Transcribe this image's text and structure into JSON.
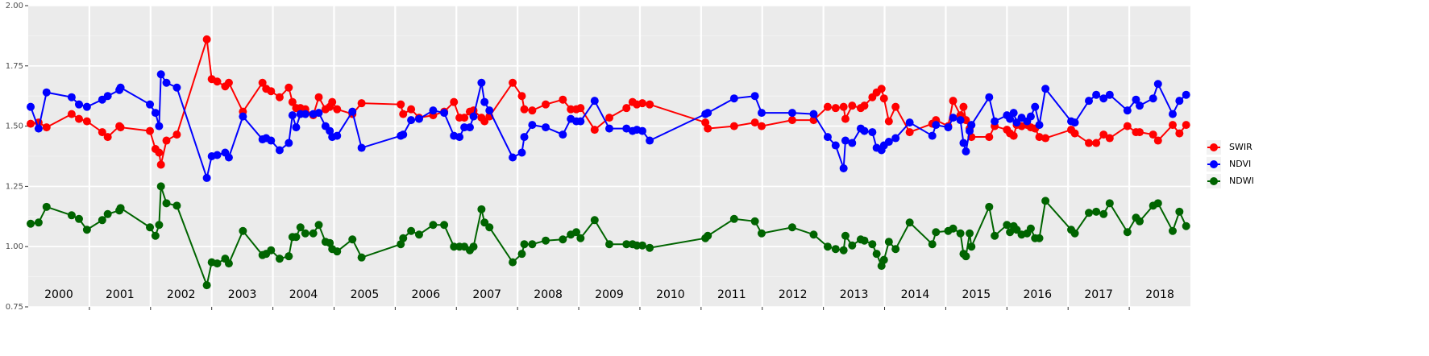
{
  "chart_data": {
    "type": "line",
    "x": [
      2000.04,
      2000.17,
      2000.3,
      2000.71,
      2000.83,
      2000.96,
      2001.21,
      2001.3,
      2001.49,
      2001.51,
      2001.99,
      2002.08,
      2002.14,
      2002.17,
      2002.26,
      2002.43,
      2002.92,
      2003.0,
      2003.09,
      2003.22,
      2003.28,
      2003.51,
      2003.83,
      2003.89,
      2003.97,
      2004.11,
      2004.26,
      2004.32,
      2004.38,
      2004.45,
      2004.53,
      2004.66,
      2004.75,
      2004.86,
      2004.93,
      2004.97,
      2005.05,
      2005.3,
      2005.45,
      2006.09,
      2006.13,
      2006.26,
      2006.39,
      2006.62,
      2006.8,
      2006.96,
      2007.05,
      2007.13,
      2007.22,
      2007.28,
      2007.41,
      2007.46,
      2007.54,
      2007.92,
      2008.07,
      2008.11,
      2008.24,
      2008.46,
      2008.74,
      2008.87,
      2008.96,
      2009.03,
      2009.26,
      2009.5,
      2009.78,
      2009.88,
      2009.95,
      2010.04,
      2010.16,
      2011.07,
      2011.11,
      2011.54,
      2011.88,
      2011.99,
      2012.49,
      2012.84,
      2013.07,
      2013.2,
      2013.33,
      2013.36,
      2013.47,
      2013.61,
      2013.67,
      2013.8,
      2013.87,
      2013.95,
      2013.99,
      2014.07,
      2014.18,
      2014.41,
      2014.78,
      2014.84,
      2015.04,
      2015.12,
      2015.24,
      2015.29,
      2015.33,
      2015.39,
      2015.42,
      2015.71,
      2015.8,
      2016.0,
      2016.05,
      2016.11,
      2016.16,
      2016.24,
      2016.33,
      2016.39,
      2016.46,
      2016.53,
      2016.63,
      2017.05,
      2017.11,
      2017.34,
      2017.46,
      2017.58,
      2017.68,
      2017.97,
      2018.11,
      2018.17,
      2018.39,
      2018.47,
      2018.71,
      2018.82,
      2018.93
    ],
    "series": [
      {
        "name": "SWIR",
        "color": "#ff0000",
        "values": [
          1.51,
          1.515,
          1.495,
          1.55,
          1.53,
          1.52,
          1.475,
          1.455,
          1.5,
          1.495,
          1.48,
          1.405,
          1.39,
          1.34,
          1.44,
          1.465,
          1.86,
          1.695,
          1.685,
          1.665,
          1.68,
          1.56,
          1.68,
          1.655,
          1.645,
          1.62,
          1.66,
          1.6,
          1.575,
          1.575,
          1.57,
          1.545,
          1.62,
          1.57,
          1.58,
          1.6,
          1.57,
          1.55,
          1.595,
          1.59,
          1.55,
          1.57,
          1.535,
          1.545,
          1.56,
          1.6,
          1.535,
          1.535,
          1.56,
          1.565,
          1.535,
          1.52,
          1.54,
          1.68,
          1.625,
          1.57,
          1.565,
          1.59,
          1.61,
          1.57,
          1.57,
          1.575,
          1.485,
          1.535,
          1.575,
          1.6,
          1.59,
          1.595,
          1.59,
          1.515,
          1.49,
          1.5,
          1.515,
          1.5,
          1.525,
          1.525,
          1.58,
          1.575,
          1.58,
          1.53,
          1.585,
          1.575,
          1.585,
          1.62,
          1.64,
          1.655,
          1.615,
          1.52,
          1.58,
          1.475,
          1.51,
          1.525,
          1.5,
          1.605,
          1.545,
          1.58,
          1.525,
          1.49,
          1.455,
          1.455,
          1.5,
          1.485,
          1.47,
          1.46,
          1.505,
          1.5,
          1.505,
          1.495,
          1.49,
          1.455,
          1.45,
          1.485,
          1.47,
          1.43,
          1.43,
          1.465,
          1.45,
          1.5,
          1.475,
          1.475,
          1.465,
          1.44,
          1.505,
          1.47,
          1.505
        ]
      },
      {
        "name": "NDVI",
        "color": "#0000ff",
        "values": [
          1.58,
          1.49,
          1.64,
          1.62,
          1.59,
          1.58,
          1.61,
          1.625,
          1.65,
          1.66,
          1.59,
          1.555,
          1.5,
          1.715,
          1.68,
          1.66,
          1.285,
          1.375,
          1.38,
          1.39,
          1.37,
          1.54,
          1.445,
          1.45,
          1.44,
          1.4,
          1.43,
          1.545,
          1.495,
          1.55,
          1.55,
          1.55,
          1.555,
          1.5,
          1.48,
          1.455,
          1.46,
          1.56,
          1.41,
          1.46,
          1.465,
          1.525,
          1.53,
          1.565,
          1.555,
          1.46,
          1.455,
          1.495,
          1.495,
          1.54,
          1.68,
          1.6,
          1.565,
          1.37,
          1.39,
          1.455,
          1.505,
          1.495,
          1.465,
          1.53,
          1.52,
          1.52,
          1.605,
          1.49,
          1.49,
          1.48,
          1.485,
          1.48,
          1.44,
          1.55,
          1.555,
          1.615,
          1.625,
          1.555,
          1.555,
          1.55,
          1.455,
          1.42,
          1.325,
          1.44,
          1.43,
          1.49,
          1.48,
          1.475,
          1.41,
          1.4,
          1.42,
          1.435,
          1.45,
          1.515,
          1.46,
          1.505,
          1.495,
          1.535,
          1.525,
          1.43,
          1.395,
          1.48,
          1.505,
          1.62,
          1.52,
          1.545,
          1.53,
          1.555,
          1.515,
          1.535,
          1.52,
          1.54,
          1.58,
          1.505,
          1.655,
          1.52,
          1.515,
          1.605,
          1.63,
          1.615,
          1.63,
          1.565,
          1.61,
          1.585,
          1.615,
          1.675,
          1.55,
          1.605,
          1.63
        ]
      },
      {
        "name": "NDWI",
        "color": "#006400",
        "values": [
          1.095,
          1.1,
          1.165,
          1.13,
          1.115,
          1.07,
          1.11,
          1.135,
          1.15,
          1.16,
          1.08,
          1.045,
          1.09,
          1.25,
          1.18,
          1.17,
          0.84,
          0.935,
          0.93,
          0.95,
          0.93,
          1.065,
          0.965,
          0.97,
          0.985,
          0.95,
          0.96,
          1.04,
          1.04,
          1.08,
          1.055,
          1.055,
          1.09,
          1.02,
          1.015,
          0.99,
          0.98,
          1.03,
          0.955,
          1.01,
          1.035,
          1.065,
          1.05,
          1.09,
          1.09,
          1.0,
          1.0,
          1.0,
          0.985,
          1.0,
          1.155,
          1.1,
          1.08,
          0.935,
          0.97,
          1.01,
          1.01,
          1.025,
          1.03,
          1.05,
          1.06,
          1.035,
          1.11,
          1.01,
          1.01,
          1.01,
          1.005,
          1.005,
          0.995,
          1.035,
          1.045,
          1.115,
          1.105,
          1.055,
          1.08,
          1.05,
          1.0,
          0.99,
          0.985,
          1.045,
          1.005,
          1.03,
          1.025,
          1.01,
          0.97,
          0.92,
          0.945,
          1.02,
          0.99,
          1.1,
          1.01,
          1.06,
          1.065,
          1.075,
          1.055,
          0.97,
          0.96,
          1.055,
          1.0,
          1.165,
          1.045,
          1.09,
          1.06,
          1.085,
          1.07,
          1.05,
          1.055,
          1.075,
          1.035,
          1.035,
          1.19,
          1.07,
          1.055,
          1.14,
          1.145,
          1.135,
          1.18,
          1.06,
          1.12,
          1.105,
          1.17,
          1.18,
          1.065,
          1.145,
          1.085
        ]
      }
    ],
    "xlim": [
      2000,
      2019
    ],
    "xticks": [
      {
        "value": 2000.5,
        "label": "2000"
      },
      {
        "value": 2001.5,
        "label": "2001"
      },
      {
        "value": 2002.5,
        "label": "2002"
      },
      {
        "value": 2003.5,
        "label": "2003"
      },
      {
        "value": 2004.5,
        "label": "2004"
      },
      {
        "value": 2005.5,
        "label": "2005"
      },
      {
        "value": 2006.5,
        "label": "2006"
      },
      {
        "value": 2007.5,
        "label": "2007"
      },
      {
        "value": 2008.5,
        "label": "2008"
      },
      {
        "value": 2009.5,
        "label": "2009"
      },
      {
        "value": 2010.5,
        "label": "2010"
      },
      {
        "value": 2011.5,
        "label": "2011"
      },
      {
        "value": 2012.5,
        "label": "2012"
      },
      {
        "value": 2013.5,
        "label": "2013"
      },
      {
        "value": 2014.5,
        "label": "2014"
      },
      {
        "value": 2015.5,
        "label": "2015"
      },
      {
        "value": 2016.5,
        "label": "2016"
      },
      {
        "value": 2017.5,
        "label": "2017"
      },
      {
        "value": 2018.5,
        "label": "2018"
      }
    ],
    "xgrid": [
      2001,
      2002,
      2003,
      2004,
      2005,
      2006,
      2007,
      2008,
      2009,
      2010,
      2011,
      2012,
      2013,
      2014,
      2015,
      2016,
      2017,
      2018
    ],
    "ylim": [
      0.75,
      2.0
    ],
    "yticks": [
      {
        "value": 0.75,
        "label": "0.75"
      },
      {
        "value": 1.0,
        "label": "1.00"
      },
      {
        "value": 1.25,
        "label": "1.25"
      },
      {
        "value": 1.5,
        "label": "1.50"
      },
      {
        "value": 1.75,
        "label": "1.75"
      },
      {
        "value": 2.0,
        "label": "2.00"
      }
    ],
    "yminor": [
      0.875,
      1.125,
      1.375,
      1.625,
      1.875
    ],
    "grid": true,
    "legend": "right"
  }
}
